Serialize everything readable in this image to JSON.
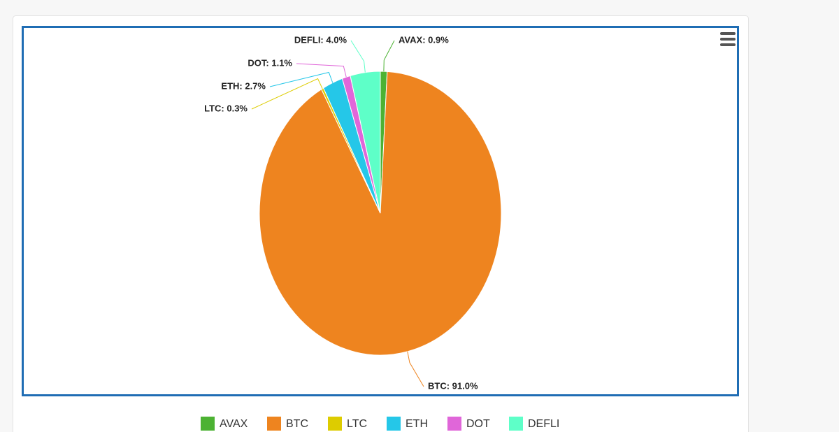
{
  "chart_data": {
    "type": "pie",
    "categories": [
      "AVAX",
      "BTC",
      "LTC",
      "ETH",
      "DOT",
      "DEFLI"
    ],
    "values": [
      0.9,
      91.0,
      0.3,
      2.7,
      1.1,
      4.0
    ],
    "value_labels": [
      "AVAX: 0.9%",
      "BTC: 91.0%",
      "LTC: 0.3%",
      "ETH: 2.7%",
      "DOT: 1.1%",
      "DEFLI: 4.0%"
    ],
    "colors": [
      "#4cb233",
      "#ee841f",
      "#ddcc00",
      "#25c7e8",
      "#e066d9",
      "#5effc8"
    ],
    "legend": "bottom"
  }
}
